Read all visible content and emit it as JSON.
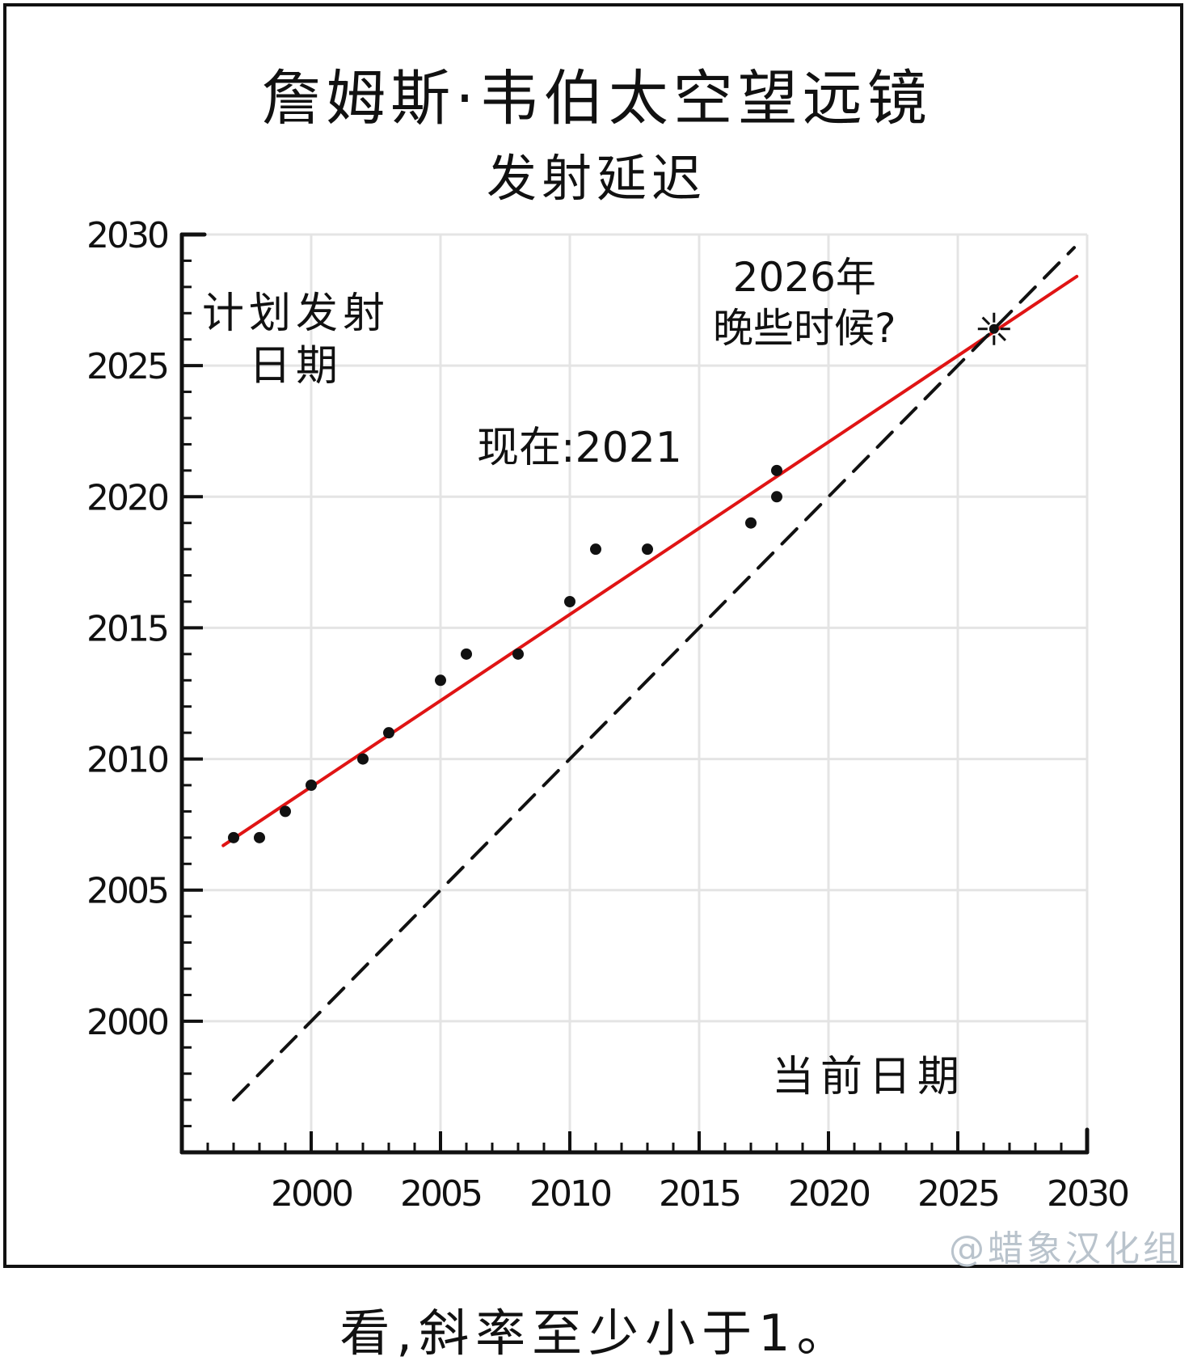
{
  "title": "詹姆斯·韦伯太空望远镜",
  "subtitle": "发射延迟",
  "annotations": {
    "ylabel_line1": "计划发射",
    "ylabel_line2": "日期",
    "now_label": "现在:2021",
    "estimate_line1": "2026年",
    "estimate_line2": "晚些时候?",
    "xlabel": "当前日期"
  },
  "watermark": "@蜡象汉化组",
  "caption": "看,斜率至少小于1。",
  "colors": {
    "fit": "#e01414",
    "ink": "#111111",
    "grid": "#e4e4e4"
  },
  "chart_data": {
    "type": "scatter",
    "title": "詹姆斯·韦伯太空望远镜",
    "subtitle": "发射延迟",
    "xlabel": "当前日期",
    "ylabel": "计划发射日期",
    "xlim": [
      1995,
      2030
    ],
    "ylim": [
      1995,
      2030
    ],
    "xticks": [
      2000,
      2005,
      2010,
      2015,
      2020,
      2025,
      2030
    ],
    "yticks": [
      2000,
      2005,
      2010,
      2015,
      2020,
      2025,
      2030
    ],
    "tick_labels": [
      "2000",
      "2005",
      "2010",
      "2015",
      "2020",
      "2025",
      "2030"
    ],
    "grid": true,
    "series": [
      {
        "kind": "points",
        "x": [
          1997,
          1998,
          1999,
          2000,
          2002,
          2003,
          2005,
          2006,
          2008,
          2010,
          2011,
          2013,
          2017,
          2018,
          2018
        ],
        "y": [
          2007,
          2007,
          2008,
          2009,
          2010,
          2011,
          2013,
          2014,
          2014,
          2016,
          2018,
          2018,
          2019,
          2020,
          2021
        ]
      },
      {
        "kind": "fit-line",
        "color": "#e01414",
        "x": [
          1996.6,
          2029.6
        ],
        "y": [
          2006.7,
          2028.4
        ]
      },
      {
        "kind": "identity-line",
        "dashed": true,
        "x": [
          1997,
          2029.5
        ],
        "y": [
          1997,
          2029.5
        ]
      }
    ],
    "intersection": {
      "x": 2026.4,
      "y": 2026.4
    }
  }
}
